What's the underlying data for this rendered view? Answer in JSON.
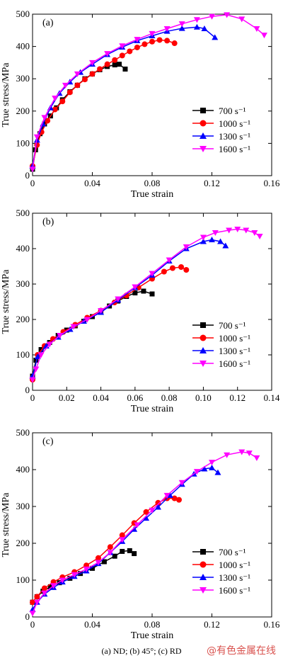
{
  "caption": "(a) ND; (b) 45°; (c) RD",
  "watermark": "@有色金属在线",
  "chart_data": [
    {
      "type": "line",
      "panel_label": "(a)",
      "xlabel": "True strain",
      "ylabel": "True stress/MPa",
      "xlim": [
        0,
        0.16
      ],
      "ylim": [
        0,
        500
      ],
      "xticks": [
        "0",
        "0.04",
        "0.08",
        "0.12",
        "0.16"
      ],
      "yticks": [
        "0",
        "100",
        "200",
        "300",
        "400",
        "500"
      ],
      "grid": false,
      "legend": "lower-right",
      "series": [
        {
          "name": "700 s⁻¹",
          "color": "#000000",
          "marker": "square",
          "x": [
            0,
            0.002,
            0.005,
            0.008,
            0.012,
            0.016,
            0.02,
            0.025,
            0.03,
            0.035,
            0.04,
            0.045,
            0.05,
            0.055,
            0.058,
            0.062
          ],
          "y": [
            20,
            80,
            130,
            160,
            185,
            210,
            235,
            260,
            280,
            300,
            315,
            328,
            338,
            343,
            345,
            330
          ]
        },
        {
          "name": "1000 s⁻¹",
          "color": "#ff0000",
          "marker": "circle",
          "x": [
            0,
            0.003,
            0.006,
            0.01,
            0.015,
            0.02,
            0.025,
            0.03,
            0.035,
            0.04,
            0.045,
            0.05,
            0.055,
            0.06,
            0.065,
            0.07,
            0.075,
            0.08,
            0.085,
            0.09,
            0.095
          ],
          "y": [
            30,
            95,
            135,
            170,
            205,
            230,
            258,
            280,
            298,
            315,
            330,
            345,
            358,
            372,
            385,
            397,
            407,
            415,
            420,
            418,
            410
          ]
        },
        {
          "name": "1300 s⁻¹",
          "color": "#0000ff",
          "marker": "triangle-up",
          "x": [
            0,
            0.003,
            0.007,
            0.012,
            0.018,
            0.025,
            0.032,
            0.04,
            0.05,
            0.06,
            0.07,
            0.08,
            0.09,
            0.1,
            0.11,
            0.115,
            0.122
          ],
          "y": [
            30,
            110,
            160,
            210,
            255,
            290,
            320,
            345,
            375,
            398,
            418,
            433,
            447,
            456,
            460,
            455,
            428
          ]
        },
        {
          "name": "1600 s⁻¹",
          "color": "#ff00ff",
          "marker": "triangle-down",
          "x": [
            0,
            0.003,
            0.008,
            0.015,
            0.022,
            0.03,
            0.04,
            0.05,
            0.06,
            0.07,
            0.08,
            0.09,
            0.1,
            0.11,
            0.12,
            0.13,
            0.14,
            0.15,
            0.155
          ],
          "y": [
            20,
            120,
            180,
            240,
            280,
            315,
            350,
            378,
            402,
            422,
            440,
            455,
            470,
            483,
            493,
            498,
            485,
            455,
            435
          ]
        }
      ]
    },
    {
      "type": "line",
      "panel_label": "(b)",
      "xlabel": "True strain",
      "ylabel": "True stress/MPa",
      "xlim": [
        0,
        0.14
      ],
      "ylim": [
        0,
        500
      ],
      "xticks": [
        "0",
        "0.02",
        "0.04",
        "0.06",
        "0.08",
        "0.10",
        "0.12",
        "0.14"
      ],
      "yticks": [
        "0",
        "100",
        "200",
        "300",
        "400",
        "500"
      ],
      "grid": false,
      "legend": "lower-right",
      "series": [
        {
          "name": "700 s⁻¹",
          "color": "#000000",
          "marker": "square",
          "x": [
            0,
            0.002,
            0.005,
            0.01,
            0.015,
            0.02,
            0.025,
            0.03,
            0.035,
            0.04,
            0.045,
            0.05,
            0.055,
            0.06,
            0.065,
            0.07
          ],
          "y": [
            40,
            85,
            115,
            135,
            155,
            170,
            182,
            195,
            208,
            222,
            238,
            252,
            265,
            275,
            280,
            272
          ]
        },
        {
          "name": "1000 s⁻¹",
          "color": "#ff0000",
          "marker": "circle",
          "x": [
            0,
            0.003,
            0.007,
            0.012,
            0.018,
            0.025,
            0.032,
            0.04,
            0.048,
            0.055,
            0.062,
            0.07,
            0.077,
            0.082,
            0.087,
            0.09
          ],
          "y": [
            30,
            100,
            125,
            145,
            165,
            185,
            205,
            225,
            248,
            268,
            290,
            315,
            335,
            345,
            348,
            340
          ]
        },
        {
          "name": "1300 s⁻¹",
          "color": "#0000ff",
          "marker": "triangle-up",
          "x": [
            0,
            0.003,
            0.008,
            0.015,
            0.022,
            0.03,
            0.04,
            0.05,
            0.06,
            0.07,
            0.08,
            0.09,
            0.1,
            0.105,
            0.11,
            0.113
          ],
          "y": [
            40,
            95,
            125,
            150,
            172,
            195,
            220,
            255,
            290,
            325,
            365,
            400,
            420,
            425,
            420,
            408
          ]
        },
        {
          "name": "1600 s⁻¹",
          "color": "#ff00ff",
          "marker": "triangle-down",
          "x": [
            0,
            0.002,
            0.005,
            0.01,
            0.016,
            0.024,
            0.032,
            0.04,
            0.05,
            0.06,
            0.07,
            0.08,
            0.09,
            0.1,
            0.107,
            0.115,
            0.12,
            0.125,
            0.13,
            0.133
          ],
          "y": [
            30,
            60,
            100,
            130,
            155,
            180,
            200,
            225,
            258,
            292,
            330,
            368,
            405,
            432,
            445,
            452,
            455,
            452,
            445,
            435
          ]
        }
      ]
    },
    {
      "type": "line",
      "panel_label": "(c)",
      "xlabel": "True strain",
      "ylabel": "True stress/MPa",
      "xlim": [
        0,
        0.16
      ],
      "ylim": [
        0,
        500
      ],
      "xticks": [
        "0",
        "0.04",
        "0.08",
        "0.12",
        "0.16"
      ],
      "yticks": [
        "0",
        "100",
        "200",
        "300",
        "400",
        "500"
      ],
      "grid": false,
      "legend": "lower-right",
      "series": [
        {
          "name": "700 s⁻¹",
          "color": "#000000",
          "marker": "square",
          "x": [
            0,
            0.003,
            0.007,
            0.012,
            0.018,
            0.025,
            0.032,
            0.04,
            0.048,
            0.055,
            0.06,
            0.065,
            0.068
          ],
          "y": [
            40,
            55,
            70,
            82,
            93,
            105,
            118,
            132,
            150,
            165,
            178,
            180,
            172
          ]
        },
        {
          "name": "1000 s⁻¹",
          "color": "#ff0000",
          "marker": "circle",
          "x": [
            0,
            0.003,
            0.008,
            0.014,
            0.02,
            0.028,
            0.036,
            0.044,
            0.052,
            0.06,
            0.068,
            0.076,
            0.084,
            0.09,
            0.095,
            0.098
          ],
          "y": [
            40,
            55,
            78,
            95,
            108,
            122,
            140,
            160,
            190,
            222,
            255,
            285,
            310,
            322,
            322,
            318
          ]
        },
        {
          "name": "1300 s⁻¹",
          "color": "#0000ff",
          "marker": "triangle-up",
          "x": [
            0,
            0.003,
            0.008,
            0.014,
            0.02,
            0.028,
            0.036,
            0.044,
            0.052,
            0.06,
            0.068,
            0.076,
            0.084,
            0.092,
            0.1,
            0.108,
            0.115,
            0.12,
            0.124
          ],
          "y": [
            20,
            40,
            62,
            80,
            95,
            110,
            125,
            145,
            175,
            205,
            238,
            268,
            298,
            330,
            360,
            388,
            402,
            405,
            392
          ]
        },
        {
          "name": "1600 s⁻¹",
          "color": "#ff00ff",
          "marker": "triangle-down",
          "x": [
            0,
            0.003,
            0.008,
            0.014,
            0.02,
            0.028,
            0.036,
            0.044,
            0.052,
            0.06,
            0.07,
            0.08,
            0.09,
            0.1,
            0.11,
            0.12,
            0.13,
            0.14,
            0.145,
            0.15
          ],
          "y": [
            10,
            40,
            65,
            85,
            100,
            115,
            130,
            148,
            175,
            210,
            250,
            290,
            330,
            365,
            395,
            420,
            440,
            448,
            445,
            432
          ]
        }
      ]
    }
  ]
}
